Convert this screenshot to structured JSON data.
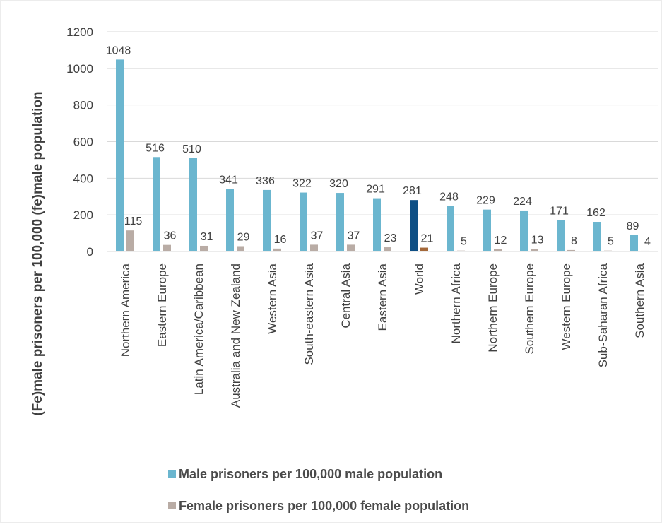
{
  "chart_data": {
    "type": "bar",
    "title": "",
    "xlabel": "",
    "ylabel": "(Fe)male prisoners per 100,000 (fe)male population",
    "ylim": [
      0,
      1200
    ],
    "yticks": [
      0,
      200,
      400,
      600,
      800,
      1000,
      1200
    ],
    "grid": true,
    "legend_position": "bottom",
    "categories": [
      "Northern America",
      "Eastern Europe",
      "Latin America/Caribbean",
      "Australia and New Zealand",
      "Western Asia",
      "South-eastern Asia",
      "Central Asia",
      "Eastern Asia",
      "World",
      "Northern Africa",
      "Northern Europe",
      "Southern Europe",
      "Western Europe",
      "Sub-Saharan Africa",
      "Southern Asia"
    ],
    "series": [
      {
        "name": "Male prisoners per 100,000 male population",
        "color": "#6bb6cf",
        "values": [
          1048,
          516,
          510,
          341,
          336,
          322,
          320,
          291,
          281,
          248,
          229,
          224,
          171,
          162,
          89
        ]
      },
      {
        "name": "Female prisoners per 100,000 female population",
        "color": "#b9aca5",
        "values": [
          115,
          36,
          31,
          29,
          16,
          37,
          37,
          23,
          21,
          5,
          12,
          13,
          8,
          5,
          4
        ]
      }
    ],
    "highlight": {
      "category": "World",
      "colors": [
        "#0e4f85",
        "#a4683a"
      ]
    },
    "gridline_color": "#d9d9d9"
  }
}
